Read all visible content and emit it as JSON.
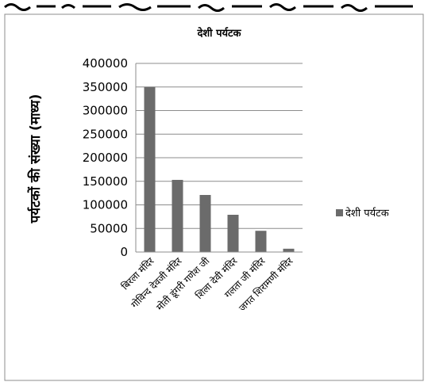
{
  "chart_data": {
    "type": "bar",
    "title": "देशी पर्यटक",
    "xlabel": "",
    "ylabel": "पर्यटकों की संख्या (माध्य)",
    "categories": [
      "बिरला मंदिर",
      "गोविन्द देवजी मंदिर",
      "मोती डूंगरी गणेश जी",
      "शिला देवी मंदिर",
      "गलता जी मंदिर",
      "जगत शिरामणी मंदिर"
    ],
    "series": [
      {
        "name": "देशी पर्यटक",
        "values": [
          350000,
          153000,
          121000,
          79000,
          45000,
          7000
        ],
        "color": "#6b6b6b"
      }
    ],
    "yticks": [
      "0",
      "50000",
      "100000",
      "150000",
      "200000",
      "250000",
      "300000",
      "350000",
      "400000"
    ],
    "ylim": [
      0,
      400000
    ],
    "grid": true,
    "legend": "right"
  }
}
